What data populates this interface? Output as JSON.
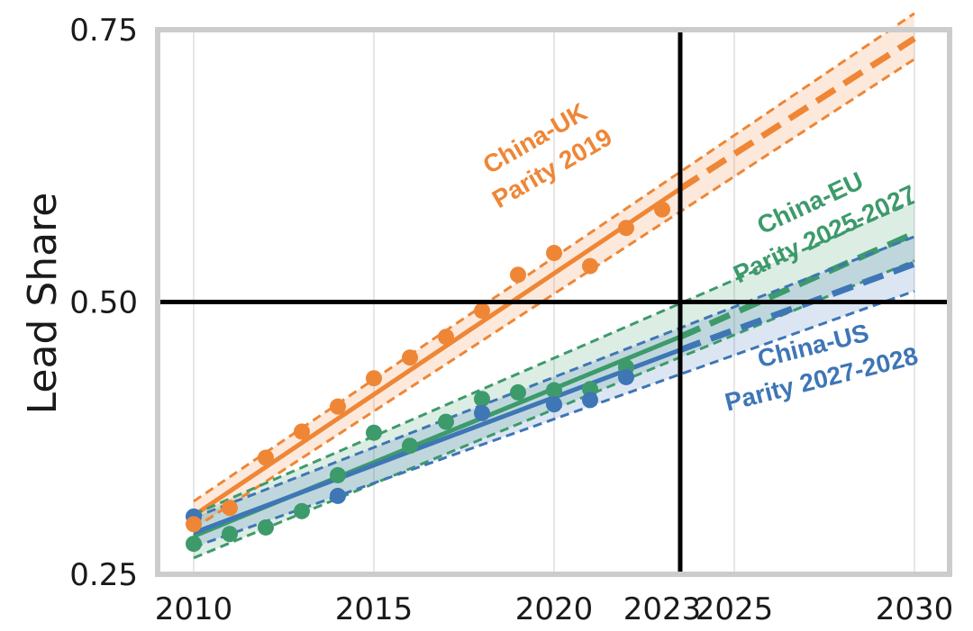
{
  "chart_data": {
    "type": "scatter",
    "ylabel": "Lead Share",
    "xlabel": "",
    "title": "",
    "xlim": [
      2010,
      2030
    ],
    "ylim": [
      0.25,
      0.75
    ],
    "xticks": [
      {
        "value": 2010,
        "label": "2010"
      },
      {
        "value": 2015,
        "label": "2015"
      },
      {
        "value": 2020,
        "label": "2020"
      },
      {
        "value": 2023,
        "label": "2023",
        "color": "#999999"
      },
      {
        "value": 2025,
        "label": "2025"
      },
      {
        "value": 2030,
        "label": "2030"
      }
    ],
    "yticks": [
      {
        "value": 0.25,
        "label": "0.25"
      },
      {
        "value": 0.5,
        "label": "0.50"
      },
      {
        "value": 0.75,
        "label": "0.75"
      }
    ],
    "grid": "vertical",
    "reference_lines": {
      "x": 2023.5,
      "y": 0.5
    },
    "series": [
      {
        "key": "uk",
        "color": "#ef8636",
        "x": [
          2010,
          2011,
          2012,
          2013,
          2014,
          2015,
          2016,
          2017,
          2018,
          2019,
          2020,
          2021,
          2022,
          2023
        ],
        "y": [
          0.296,
          0.311,
          0.357,
          0.381,
          0.404,
          0.43,
          0.449,
          0.468,
          0.492,
          0.525,
          0.545,
          0.533,
          0.568,
          0.585
        ],
        "fit": {
          "x": [
            2010,
            2023.5
          ],
          "y": [
            0.304,
            0.604
          ]
        },
        "projection": {
          "x": [
            2023.5,
            2030
          ],
          "y": [
            0.604,
            0.742
          ]
        },
        "band_lower": [
          0.292,
          0.723
        ],
        "band_upper": [
          0.317,
          0.765
        ],
        "annotation": {
          "lines": [
            "China-UK",
            "Parity 2019"
          ],
          "x": 2019.7,
          "y": 0.637,
          "rotation": -30
        }
      },
      {
        "key": "eu",
        "color": "#3d9a6b",
        "x": [
          2010,
          2011,
          2012,
          2013,
          2014,
          2015,
          2016,
          2017,
          2018,
          2019,
          2020,
          2021,
          2022
        ],
        "y": [
          0.278,
          0.287,
          0.293,
          0.308,
          0.341,
          0.38,
          0.368,
          0.39,
          0.411,
          0.417,
          0.419,
          0.42,
          0.44
        ],
        "fit": {
          "x": [
            2010,
            2023.5
          ],
          "y": [
            0.285,
            0.468
          ]
        },
        "projection": {
          "x": [
            2023.5,
            2030
          ],
          "y": [
            0.468,
            0.563
          ]
        },
        "band_lower": [
          0.265,
          0.538
        ],
        "band_upper": [
          0.305,
          0.592
        ],
        "annotation": {
          "lines": [
            "China-EU",
            "Parity 2025-2027"
          ],
          "x": 2027.3,
          "y": 0.577,
          "rotation": -25
        }
      },
      {
        "key": "us",
        "color": "#3e76b6",
        "x": [
          2010,
          2014,
          2018,
          2020,
          2021,
          2022
        ],
        "y": [
          0.303,
          0.322,
          0.398,
          0.406,
          0.41,
          0.431
        ],
        "fit": {
          "x": [
            2010,
            2023.5
          ],
          "y": [
            0.288,
            0.456
          ]
        },
        "projection": {
          "x": [
            2023.5,
            2030
          ],
          "y": [
            0.456,
            0.535
          ]
        },
        "band_lower": [
          0.275,
          0.51
        ],
        "band_upper": [
          0.302,
          0.56
        ],
        "annotation": {
          "lines": [
            "China-US",
            "Parity 2027-2028"
          ],
          "x": 2027.3,
          "y": 0.445,
          "rotation": -14
        }
      }
    ]
  },
  "colors": {
    "frame": "#cccccc",
    "grid": "#dddddd",
    "reference": "#000000"
  }
}
